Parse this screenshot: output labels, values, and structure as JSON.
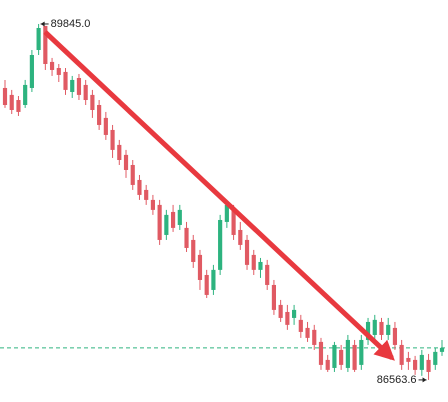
{
  "chart_data": {
    "type": "candlestick",
    "max_label": "89845.0",
    "min_label": "86563.6",
    "up_color": "#2db37f",
    "down_color": "#e05a63",
    "last_line_color": "#2db37f",
    "ylim": [
      86360,
      90066
    ],
    "open": [
      89255,
      89191,
      89144,
      89098,
      89255,
      89605,
      89827,
      89495,
      89439,
      89403,
      89218,
      89347,
      89283,
      89191,
      89098,
      88979,
      88868,
      88730,
      88638,
      88545,
      88407,
      88315,
      88223,
      88177,
      87900,
      88112,
      87992,
      87965,
      87854,
      87716,
      87531,
      87393,
      87578,
      88020,
      88131,
      87946,
      87854,
      87716,
      87578,
      87624,
      87439,
      87255,
      87190,
      87135,
      87117,
      87043,
      87025,
      86914,
      86748,
      86674,
      86840,
      86674,
      86886,
      86702,
      86932,
      86978,
      87098,
      86978,
      87043,
      86886,
      86766,
      86748,
      86656,
      86748,
      86702,
      86822
    ],
    "high": [
      89329,
      89237,
      89181,
      89329,
      89605,
      89845,
      89827,
      89532,
      89476,
      89439,
      89366,
      89384,
      89329,
      89237,
      89144,
      89034,
      88914,
      88776,
      88684,
      88591,
      88453,
      88361,
      88269,
      88223,
      88131,
      88177,
      88177,
      88020,
      87900,
      87762,
      87578,
      87624,
      88085,
      88223,
      88177,
      88020,
      87900,
      87762,
      87688,
      87670,
      87485,
      87301,
      87255,
      87255,
      87163,
      87098,
      87071,
      86951,
      86794,
      86914,
      86886,
      86978,
      86932,
      86978,
      87135,
      87163,
      87135,
      87135,
      87098,
      86932,
      86822,
      86785,
      86840,
      86803,
      86859,
      86932
    ],
    "low": [
      89071,
      89015,
      88997,
      89071,
      89218,
      89559,
      89421,
      89366,
      89310,
      89191,
      89163,
      89144,
      89098,
      88979,
      88868,
      88776,
      88610,
      88545,
      88426,
      88315,
      88223,
      88177,
      88085,
      87808,
      87854,
      87928,
      87946,
      87743,
      87596,
      87393,
      87319,
      87347,
      87531,
      87965,
      87854,
      87762,
      87578,
      87531,
      87504,
      87393,
      87163,
      87098,
      87025,
      87071,
      86951,
      86914,
      86840,
      86656,
      86637,
      86637,
      86656,
      86637,
      86637,
      86656,
      86886,
      86932,
      86932,
      86932,
      86840,
      86656,
      86656,
      86610,
      86601,
      86563.6,
      86656,
      86785
    ],
    "close": [
      89098,
      89052,
      89034,
      89283,
      89559,
      89808,
      89476,
      89421,
      89375,
      89237,
      89329,
      89191,
      89144,
      89052,
      88914,
      88822,
      88684,
      88591,
      88499,
      88361,
      88269,
      88223,
      88131,
      87854,
      88085,
      87965,
      88131,
      87780,
      87651,
      87485,
      87347,
      87578,
      88038,
      88177,
      87900,
      87808,
      87624,
      87578,
      87651,
      87439,
      87209,
      87135,
      87071,
      87209,
      87006,
      86951,
      86886,
      86702,
      86656,
      86886,
      86702,
      86932,
      86656,
      86932,
      87098,
      87117,
      86978,
      87071,
      86886,
      86702,
      86730,
      86656,
      86794,
      86637,
      86822,
      86859
    ]
  }
}
